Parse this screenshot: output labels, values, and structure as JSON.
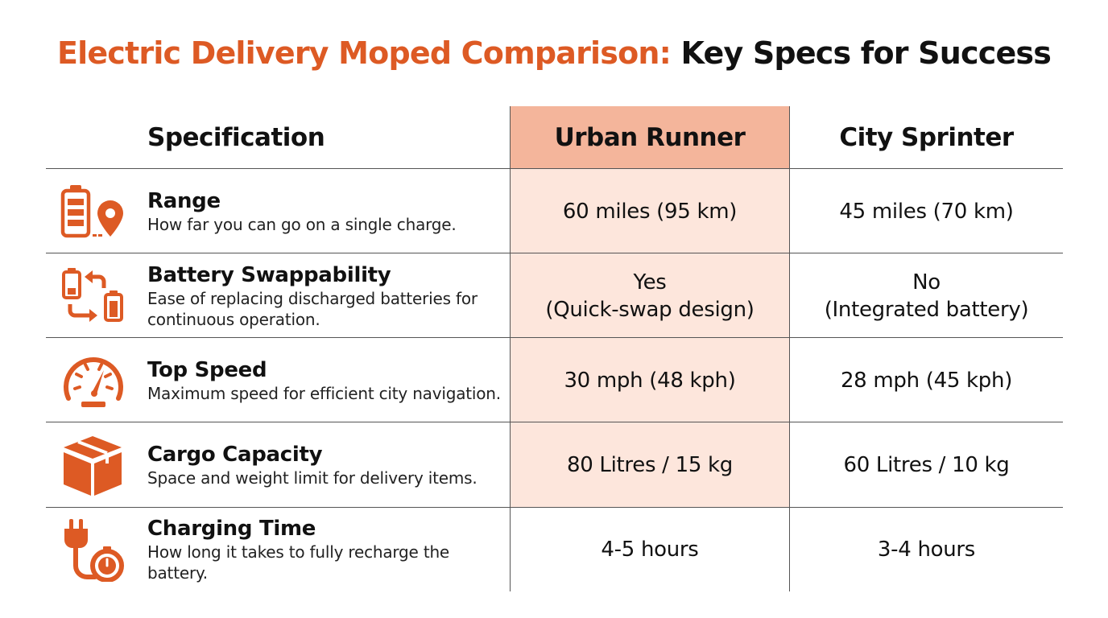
{
  "title": {
    "accent_text": "Electric Delivery Moped Comparison:",
    "dark_text": "Key Specs for Success"
  },
  "colors": {
    "accent": "#dd5a24",
    "highlight_header": "#f4b59b",
    "highlight_column": "#fde6dc",
    "text": "#111111"
  },
  "table": {
    "headers": {
      "spec": "Specification",
      "model_1": "Urban Runner",
      "model_2": "City Sprinter"
    },
    "highlighted_column": "Urban Runner",
    "rows": [
      {
        "icon": "battery-location-icon",
        "name": "Range",
        "description": "How far you can go on a single charge.",
        "model_1": [
          "60 miles (95 km)"
        ],
        "model_2": [
          "45 miles (70 km)"
        ]
      },
      {
        "icon": "battery-swap-icon",
        "name": "Battery Swappability",
        "description": "Ease of replacing discharged batteries for continuous operation.",
        "model_1": [
          "Yes",
          "(Quick-swap design)"
        ],
        "model_2": [
          "No",
          "(Integrated battery)"
        ]
      },
      {
        "icon": "speedometer-icon",
        "name": "Top Speed",
        "description": "Maximum speed for efficient city navigation.",
        "model_1": [
          "30 mph (48 kph)"
        ],
        "model_2": [
          "28 mph (45 kph)"
        ]
      },
      {
        "icon": "cargo-box-icon",
        "name": "Cargo Capacity",
        "description": "Space and weight limit for delivery items.",
        "model_1": [
          "80 Litres / 15 kg"
        ],
        "model_2": [
          "60 Litres / 10 kg"
        ]
      },
      {
        "icon": "plug-timer-icon",
        "name": "Charging Time",
        "description": "How long it takes to fully recharge the battery.",
        "model_1": [
          "4-5 hours"
        ],
        "model_2": [
          "3-4 hours"
        ]
      }
    ]
  }
}
